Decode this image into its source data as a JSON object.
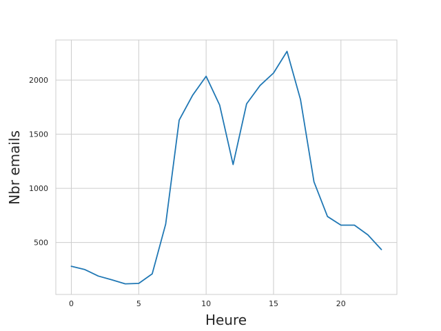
{
  "chart_data": {
    "type": "line",
    "xlabel": "Heure",
    "ylabel": "Nbr emails",
    "grid": true,
    "xlim": [
      -1.15,
      24.15
    ],
    "ylim": [
      20,
      2370
    ],
    "xticks": [
      0,
      5,
      10,
      15,
      20
    ],
    "yticks": [
      500,
      1000,
      1500,
      2000
    ],
    "series": [
      {
        "color": "#1f77b4",
        "x": [
          0,
          1,
          2,
          3,
          4,
          5,
          6,
          7,
          8,
          9,
          10,
          11,
          12,
          13,
          14,
          15,
          16,
          17,
          18,
          19,
          20,
          21,
          22,
          23
        ],
        "y": [
          280,
          250,
          190,
          155,
          118,
          122,
          210,
          670,
          1630,
          1860,
          2035,
          1770,
          1220,
          1780,
          1950,
          2065,
          2265,
          1820,
          1060,
          740,
          660,
          660,
          570,
          435
        ]
      }
    ]
  }
}
